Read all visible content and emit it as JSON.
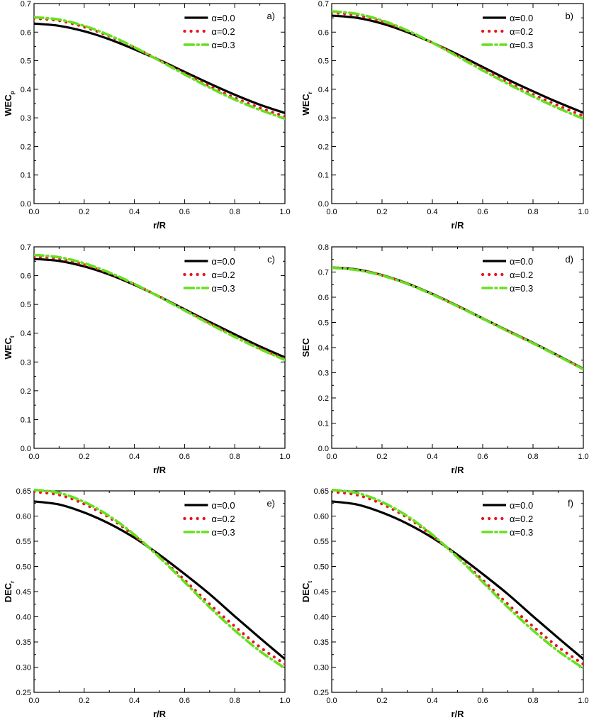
{
  "series_styles": [
    {
      "name": "α=0.0",
      "color": "#000000",
      "dash": "solid"
    },
    {
      "name": "α=0.2",
      "color": "#e8141e",
      "dash": "dotted"
    },
    {
      "name": "α=0.3",
      "color": "#66e01e",
      "dash": "dashdot"
    }
  ],
  "chart_data": [
    {
      "type": "line",
      "panel": "a)",
      "xlabel": "r/R",
      "ylabel": "WEC",
      "ylabel_sub": "p",
      "xlim": [
        0,
        1
      ],
      "ylim": [
        0,
        0.7
      ],
      "xticks": [
        "0.0",
        "0.2",
        "0.4",
        "0.6",
        "0.8",
        "1.0"
      ],
      "yticks": [
        "0.0",
        "0.1",
        "0.2",
        "0.3",
        "0.4",
        "0.5",
        "0.6",
        "0.7"
      ],
      "x": [
        0,
        0.1,
        0.2,
        0.3,
        0.4,
        0.5,
        0.6,
        0.7,
        0.8,
        0.9,
        1.0
      ],
      "series": [
        {
          "name": "α=0.0",
          "values": [
            0.63,
            0.622,
            0.603,
            0.575,
            0.54,
            0.502,
            0.461,
            0.42,
            0.381,
            0.346,
            0.317
          ]
        },
        {
          "name": "α=0.2",
          "values": [
            0.648,
            0.64,
            0.618,
            0.586,
            0.546,
            0.502,
            0.456,
            0.411,
            0.37,
            0.335,
            0.305
          ]
        },
        {
          "name": "α=0.3",
          "values": [
            0.652,
            0.644,
            0.622,
            0.589,
            0.547,
            0.5,
            0.452,
            0.406,
            0.364,
            0.328,
            0.297
          ]
        }
      ]
    },
    {
      "type": "line",
      "panel": "b)",
      "xlabel": "r/R",
      "ylabel": "WEC",
      "ylabel_sub": "r",
      "xlim": [
        0,
        1
      ],
      "ylim": [
        0,
        0.7
      ],
      "xticks": [
        "0.0",
        "0.2",
        "0.4",
        "0.6",
        "0.8",
        "1.0"
      ],
      "yticks": [
        "0.0",
        "0.1",
        "0.2",
        "0.3",
        "0.4",
        "0.5",
        "0.6",
        "0.7"
      ],
      "x": [
        0,
        0.1,
        0.2,
        0.3,
        0.4,
        0.5,
        0.6,
        0.7,
        0.8,
        0.9,
        1.0
      ],
      "series": [
        {
          "name": "α=0.0",
          "values": [
            0.658,
            0.65,
            0.63,
            0.6,
            0.563,
            0.522,
            0.478,
            0.434,
            0.393,
            0.354,
            0.318
          ]
        },
        {
          "name": "α=0.2",
          "values": [
            0.668,
            0.659,
            0.637,
            0.604,
            0.563,
            0.518,
            0.471,
            0.425,
            0.382,
            0.343,
            0.307
          ]
        },
        {
          "name": "α=0.3",
          "values": [
            0.673,
            0.664,
            0.641,
            0.606,
            0.563,
            0.515,
            0.466,
            0.419,
            0.375,
            0.334,
            0.297
          ]
        }
      ]
    },
    {
      "type": "line",
      "panel": "c)",
      "xlabel": "r/R",
      "ylabel": "WEC",
      "ylabel_sub": "t",
      "xlim": [
        0,
        1
      ],
      "ylim": [
        0,
        0.7
      ],
      "xticks": [
        "0.0",
        "0.2",
        "0.4",
        "0.6",
        "0.8",
        "1.0"
      ],
      "yticks": [
        "0.0",
        "0.1",
        "0.2",
        "0.3",
        "0.4",
        "0.5",
        "0.6",
        "0.7"
      ],
      "x": [
        0,
        0.1,
        0.2,
        0.3,
        0.4,
        0.5,
        0.6,
        0.7,
        0.8,
        0.9,
        1.0
      ],
      "series": [
        {
          "name": "α=0.0",
          "values": [
            0.658,
            0.651,
            0.632,
            0.604,
            0.568,
            0.527,
            0.483,
            0.439,
            0.396,
            0.354,
            0.316
          ]
        },
        {
          "name": "α=0.2",
          "values": [
            0.666,
            0.659,
            0.638,
            0.608,
            0.57,
            0.527,
            0.481,
            0.435,
            0.39,
            0.348,
            0.31
          ]
        },
        {
          "name": "α=0.3",
          "values": [
            0.672,
            0.664,
            0.643,
            0.611,
            0.571,
            0.526,
            0.479,
            0.432,
            0.387,
            0.345,
            0.307
          ]
        }
      ]
    },
    {
      "type": "line",
      "panel": "d)",
      "xlabel": "r/R",
      "ylabel": "SEC",
      "ylabel_sub": "",
      "xlim": [
        0,
        1
      ],
      "ylim": [
        0,
        0.8
      ],
      "xticks": [
        "0.0",
        "0.2",
        "0.4",
        "0.6",
        "0.8",
        "1.0"
      ],
      "yticks": [
        "0.0",
        "0.1",
        "0.2",
        "0.3",
        "0.4",
        "0.5",
        "0.6",
        "0.7",
        "0.8"
      ],
      "x": [
        0,
        0.1,
        0.2,
        0.3,
        0.4,
        0.5,
        0.6,
        0.7,
        0.8,
        0.9,
        1.0
      ],
      "series": [
        {
          "name": "α=0.0",
          "values": [
            0.718,
            0.71,
            0.688,
            0.655,
            0.613,
            0.566,
            0.516,
            0.467,
            0.419,
            0.368,
            0.316
          ]
        },
        {
          "name": "α=0.2",
          "values": [
            0.718,
            0.709,
            0.687,
            0.654,
            0.612,
            0.565,
            0.515,
            0.466,
            0.418,
            0.367,
            0.315
          ]
        },
        {
          "name": "α=0.3",
          "values": [
            0.717,
            0.708,
            0.686,
            0.653,
            0.611,
            0.564,
            0.515,
            0.465,
            0.417,
            0.366,
            0.314
          ]
        }
      ]
    },
    {
      "type": "line",
      "panel": "e)",
      "xlabel": "r/R",
      "ylabel": "DEC",
      "ylabel_sub": "r",
      "xlim": [
        0,
        1
      ],
      "ylim": [
        0.25,
        0.65
      ],
      "xticks": [
        "0.0",
        "0.2",
        "0.4",
        "0.6",
        "0.8",
        "1.0"
      ],
      "yticks": [
        "0.25",
        "0.30",
        "0.35",
        "0.40",
        "0.45",
        "0.50",
        "0.55",
        "0.60",
        "0.65"
      ],
      "x": [
        0,
        0.1,
        0.2,
        0.3,
        0.4,
        0.5,
        0.6,
        0.7,
        0.8,
        0.9,
        1.0
      ],
      "series": [
        {
          "name": "α=0.0",
          "values": [
            0.629,
            0.623,
            0.607,
            0.585,
            0.557,
            0.523,
            0.485,
            0.445,
            0.401,
            0.358,
            0.316
          ]
        },
        {
          "name": "α=0.2",
          "values": [
            0.648,
            0.642,
            0.624,
            0.597,
            0.561,
            0.519,
            0.473,
            0.425,
            0.381,
            0.34,
            0.306
          ]
        },
        {
          "name": "α=0.3",
          "values": [
            0.652,
            0.646,
            0.628,
            0.6,
            0.563,
            0.518,
            0.469,
            0.419,
            0.373,
            0.332,
            0.298
          ]
        }
      ]
    },
    {
      "type": "line",
      "panel": "f)",
      "xlabel": "r/R",
      "ylabel": "DEC",
      "ylabel_sub": "t",
      "xlim": [
        0,
        1
      ],
      "ylim": [
        0.25,
        0.65
      ],
      "xticks": [
        "0.0",
        "0.2",
        "0.4",
        "0.6",
        "0.8",
        "1.0"
      ],
      "yticks": [
        "0.25",
        "0.30",
        "0.35",
        "0.40",
        "0.45",
        "0.50",
        "0.55",
        "0.60",
        "0.65"
      ],
      "x": [
        0,
        0.1,
        0.2,
        0.3,
        0.4,
        0.5,
        0.6,
        0.7,
        0.8,
        0.9,
        1.0
      ],
      "series": [
        {
          "name": "α=0.0",
          "values": [
            0.629,
            0.623,
            0.607,
            0.585,
            0.557,
            0.523,
            0.485,
            0.445,
            0.401,
            0.358,
            0.316
          ]
        },
        {
          "name": "α=0.2",
          "values": [
            0.648,
            0.642,
            0.624,
            0.597,
            0.561,
            0.519,
            0.473,
            0.425,
            0.381,
            0.34,
            0.306
          ]
        },
        {
          "name": "α=0.3",
          "values": [
            0.652,
            0.646,
            0.628,
            0.6,
            0.563,
            0.518,
            0.469,
            0.419,
            0.373,
            0.332,
            0.298
          ]
        }
      ]
    }
  ]
}
